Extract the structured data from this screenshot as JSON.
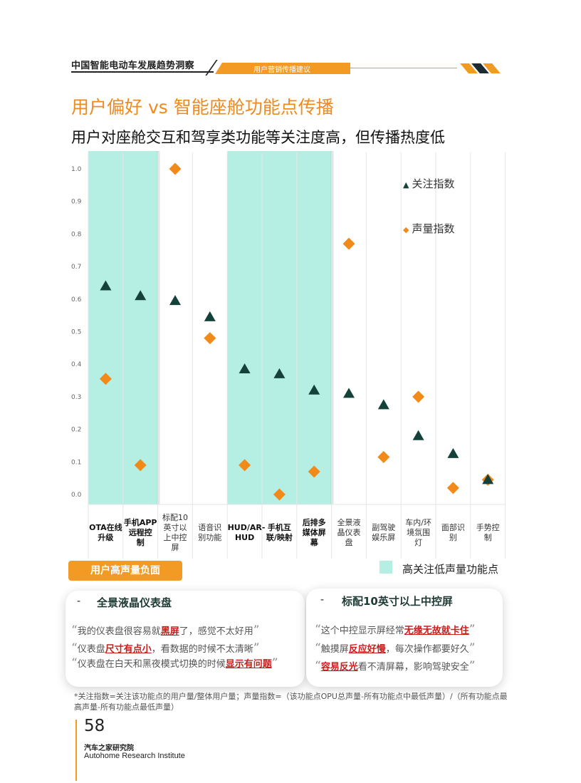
{
  "header": {
    "report_title": "中国智能电动车发展趋势洞察",
    "section_tag": "用户营销传播建议"
  },
  "page_title": "用户偏好 vs 智能座舱功能点传播",
  "subtitle": "用户对座舱交互和驾享类功能等关注度高，但传播热度低",
  "chart_data": {
    "type": "scatter",
    "title": "",
    "xlabel": "",
    "ylabel": "",
    "ylim": [
      0,
      1.0
    ],
    "yticks": [
      "0.0",
      "0.1",
      "0.2",
      "0.3",
      "0.4",
      "0.5",
      "0.6",
      "0.7",
      "0.8",
      "0.9",
      "1.0"
    ],
    "grid": "vertical category separators",
    "legend_position": "top-right",
    "categories": [
      "OTA在线升级",
      "手机APP远程控制",
      "标配10英寸以上中控屏",
      "语音识别功能",
      "HUD/AR-HUD",
      "手机互联/映射",
      "后排多媒体屏幕",
      "全景液晶仪表盘",
      "副驾驶娱乐屏",
      "车内/环境氛围灯",
      "面部识别",
      "手势控制"
    ],
    "category_label_lines": [
      [
        "OTA在线",
        "升级"
      ],
      [
        "手机APP",
        "远程控",
        "制"
      ],
      [
        "标配10",
        "英寸以",
        "上中控",
        "屏"
      ],
      [
        "语音识",
        "别功能"
      ],
      [
        "HUD/AR-",
        "HUD"
      ],
      [
        "手机互",
        "联/映射"
      ],
      [
        "后排多",
        "媒体屏",
        "幕"
      ],
      [
        "全景液",
        "晶仪表",
        "盘"
      ],
      [
        "副驾驶",
        "娱乐屏"
      ],
      [
        "车内/环",
        "境氛围",
        "灯"
      ],
      [
        "面部识",
        "别"
      ],
      [
        "手势控",
        "制"
      ]
    ],
    "bold_categories": [
      0,
      1,
      4,
      5,
      6
    ],
    "highlighted_categories": [
      0,
      1,
      4,
      5,
      6
    ],
    "series": [
      {
        "name": "关注指数",
        "marker": "triangle",
        "color": "#14423a",
        "values": [
          0.64,
          0.61,
          0.595,
          0.545,
          0.385,
          0.37,
          0.32,
          0.31,
          0.275,
          0.18,
          0.125,
          0.045
        ]
      },
      {
        "name": "声量指数",
        "marker": "diamond",
        "color": "#f28a1a",
        "values": [
          0.355,
          0.09,
          1.0,
          0.48,
          0.09,
          0.0,
          0.07,
          0.77,
          0.115,
          0.3,
          0.02,
          0.045
        ]
      }
    ]
  },
  "legend": {
    "attention_label": "关注指数",
    "volume_label": "声量指数",
    "highlight_label": "高关注低声量功能点"
  },
  "negative_section": {
    "badge": "用户高声量负面",
    "cards": [
      {
        "title": "全景液晶仪表盘",
        "quotes": [
          {
            "pre": "我的仪表盘很容易就",
            "hl": "黑屏",
            "post": "了，感觉不太好用"
          },
          {
            "pre": "仪表盘",
            "hl": "尺寸有点小",
            "post": "，看数据的时候不太清晰"
          },
          {
            "pre": "仪表盘在白天和黑夜模式切换的时候",
            "hl": "显示有问题",
            "post": ""
          }
        ]
      },
      {
        "title": "标配10英寸以上中控屏",
        "quotes": [
          {
            "pre": "这个中控显示屏经常",
            "hl": "无缘无故就卡住",
            "post": ""
          },
          {
            "pre": "触摸屏",
            "hl": "反应好慢",
            "post": "，每次操作都要好久"
          },
          {
            "pre": "",
            "hl": "容易反光",
            "post": "看不清屏幕，影响驾驶安全"
          }
        ]
      }
    ]
  },
  "footnote": "*关注指数=关注该功能点的用户量/整体用户量；声量指数=（该功能点OPU总声量-所有功能点中最低声量）/（所有功能点最高声量-所有功能点最低声量）",
  "footer": {
    "page_number": "58",
    "institute_cn": "汽车之家研究院",
    "institute_en": "Autohome Research Institute"
  },
  "colors": {
    "accent_orange": "#f39a25",
    "highlight_teal": "#b5eee2",
    "triangle_dark": "#14423a",
    "diamond_orange": "#f28a1a",
    "negative_red": "#c81e1e"
  }
}
